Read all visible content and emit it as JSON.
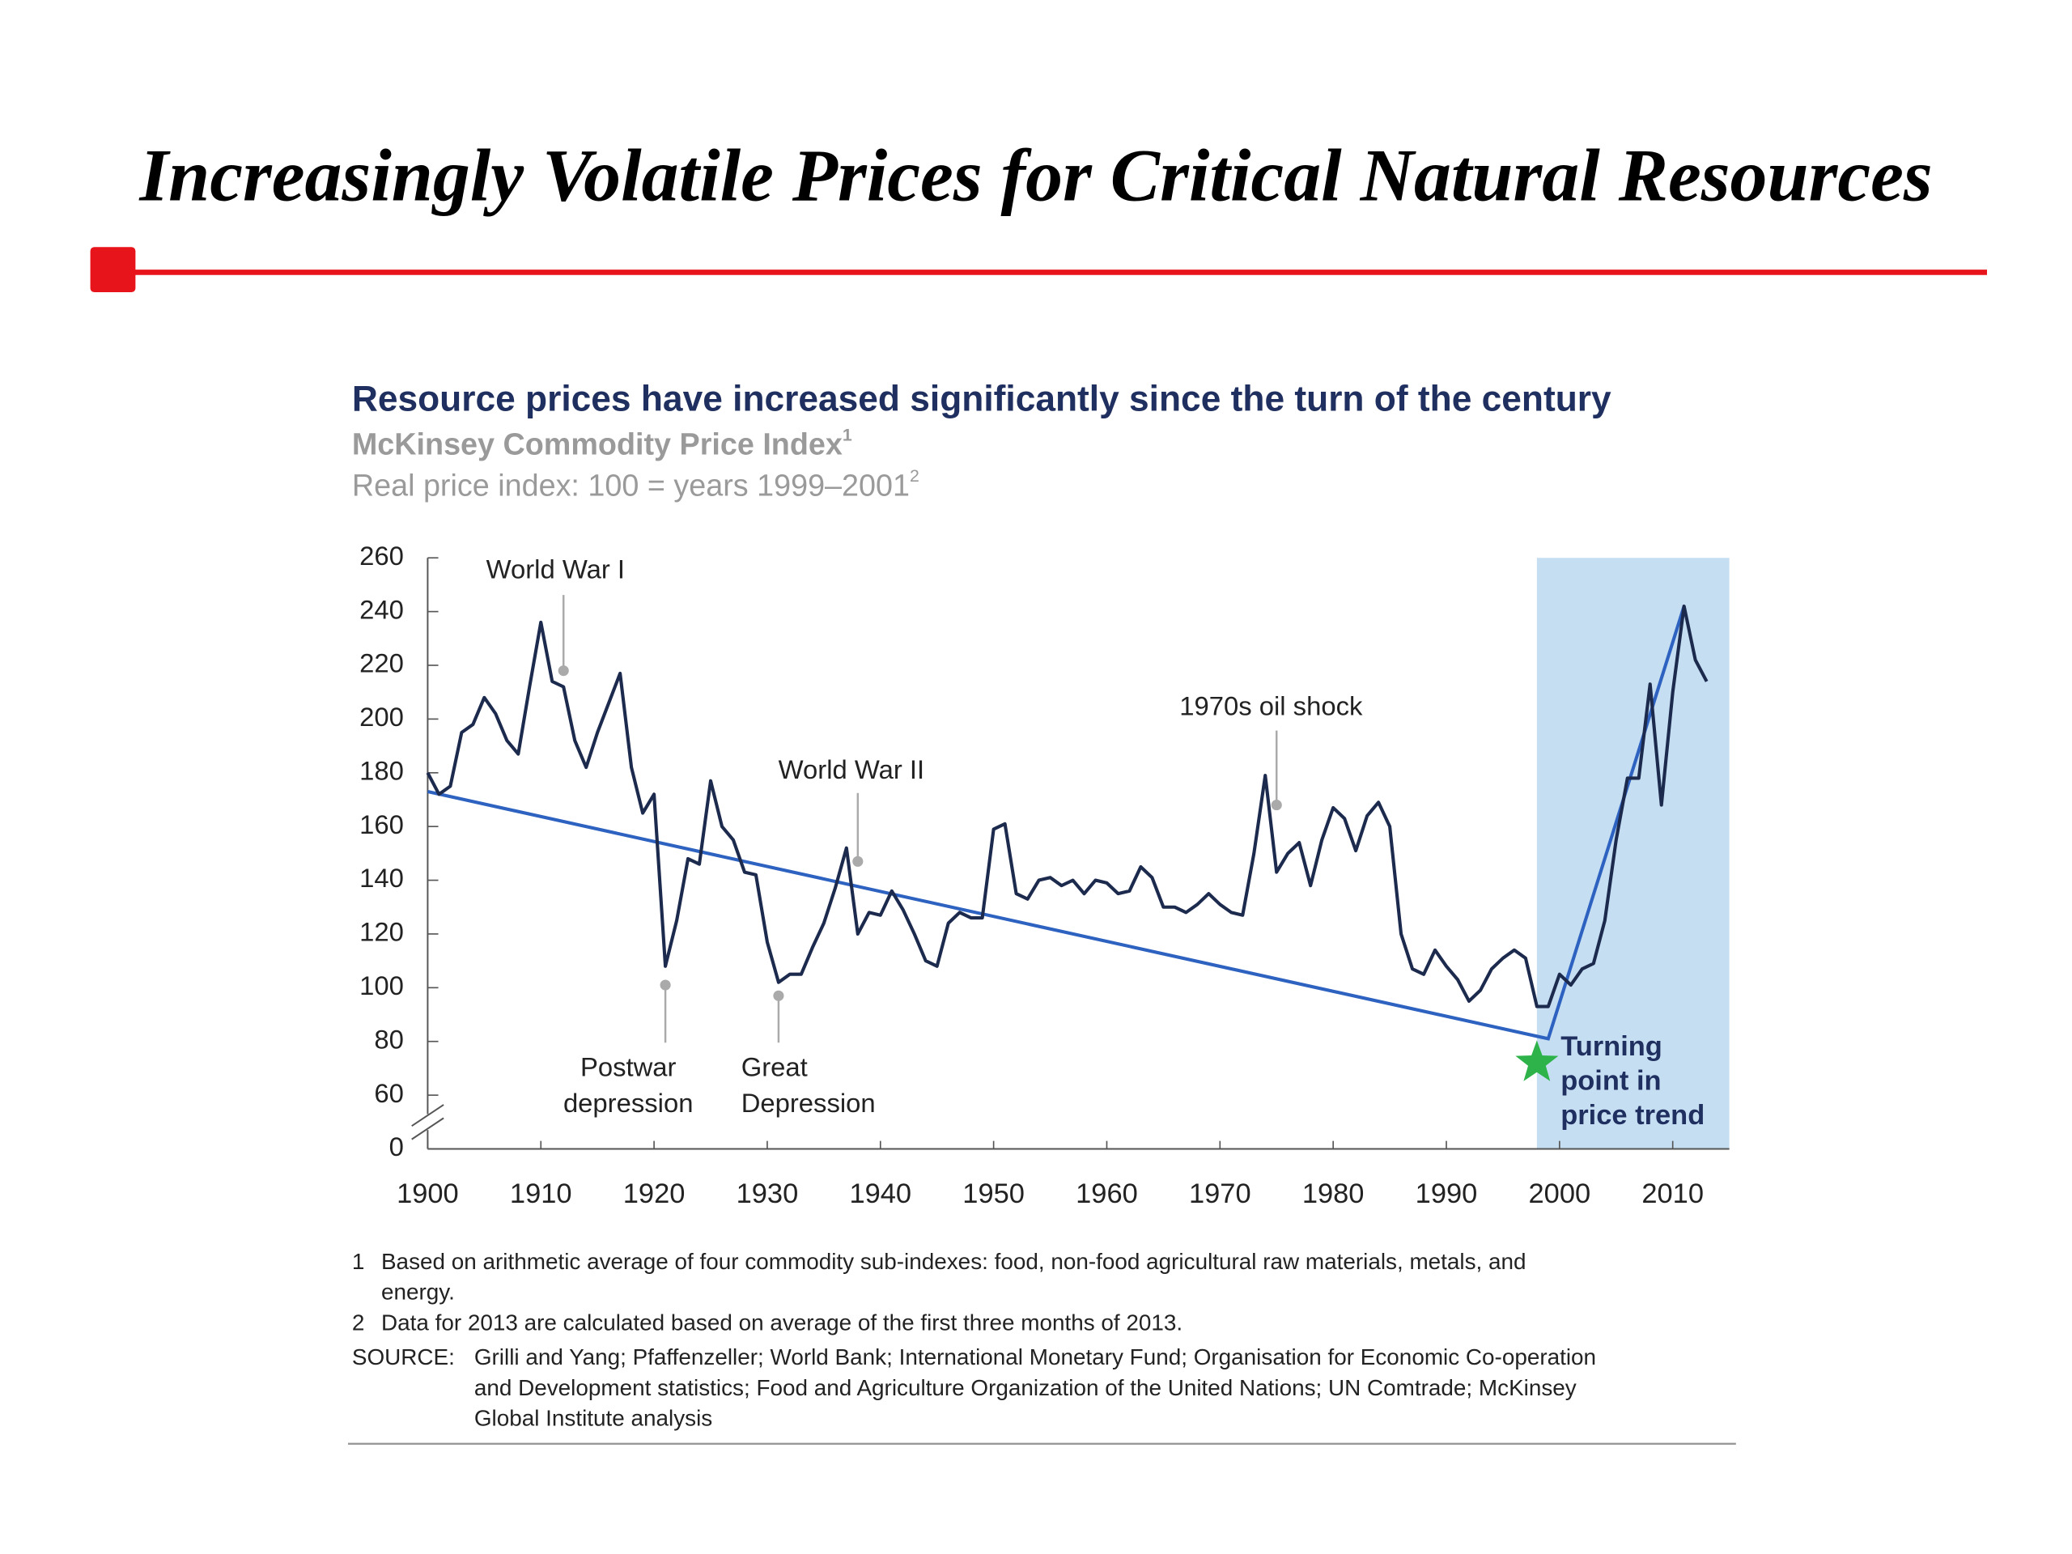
{
  "slide_title": "Increasingly Volatile Prices for Critical Natural Resources",
  "chart_data": {
    "type": "line",
    "title": "Resource prices have increased significantly since the turn of the century",
    "subtitle": "McKinsey Commodity Price Index",
    "subtitle_note": "1",
    "subtitle2": "Real price index: 100 = years 1999–2001",
    "subtitle2_note": "2",
    "x": [
      1900,
      1901,
      1902,
      1903,
      1904,
      1905,
      1906,
      1907,
      1908,
      1909,
      1910,
      1911,
      1912,
      1913,
      1914,
      1915,
      1916,
      1917,
      1918,
      1919,
      1920,
      1921,
      1922,
      1923,
      1924,
      1925,
      1926,
      1927,
      1928,
      1929,
      1930,
      1931,
      1932,
      1933,
      1934,
      1935,
      1936,
      1937,
      1938,
      1939,
      1940,
      1941,
      1942,
      1943,
      1944,
      1945,
      1946,
      1947,
      1948,
      1949,
      1950,
      1951,
      1952,
      1953,
      1954,
      1955,
      1956,
      1957,
      1958,
      1959,
      1960,
      1961,
      1962,
      1963,
      1964,
      1965,
      1966,
      1967,
      1968,
      1969,
      1970,
      1971,
      1972,
      1973,
      1974,
      1975,
      1976,
      1977,
      1978,
      1979,
      1980,
      1981,
      1982,
      1983,
      1984,
      1985,
      1986,
      1987,
      1988,
      1989,
      1990,
      1991,
      1992,
      1993,
      1994,
      1995,
      1996,
      1997,
      1998,
      1999,
      2000,
      2001,
      2002,
      2003,
      2004,
      2005,
      2006,
      2007,
      2008,
      2009,
      2010,
      2011,
      2012,
      2013
    ],
    "series": [
      {
        "color": "#1c2a4e",
        "values": [
          180,
          172,
          175,
          195,
          198,
          208,
          202,
          192,
          187,
          212,
          236,
          214,
          212,
          192,
          182,
          195,
          206,
          217,
          182,
          165,
          172,
          108,
          125,
          148,
          146,
          177,
          160,
          155,
          143,
          142,
          117,
          102,
          105,
          105,
          115,
          124,
          137,
          152,
          120,
          128,
          127,
          136,
          129,
          120,
          110,
          108,
          124,
          128,
          126,
          126,
          159,
          161,
          135,
          133,
          140,
          141,
          138,
          140,
          135,
          140,
          139,
          135,
          136,
          145,
          141,
          130,
          130,
          128,
          131,
          135,
          131,
          128,
          127,
          150,
          179,
          143,
          150,
          154,
          138,
          155,
          167,
          163,
          151,
          164,
          169,
          160,
          120,
          107,
          105,
          114,
          108,
          103,
          95,
          99,
          107,
          111,
          114,
          111,
          93,
          93,
          105,
          101,
          107,
          109,
          125,
          155,
          178,
          178,
          213,
          168,
          210,
          242,
          222,
          214
        ]
      }
    ],
    "trend_line": {
      "color": "#2e62c0",
      "x": [
        1900,
        1999,
        2011
      ],
      "values": [
        173,
        81,
        242
      ]
    },
    "highlight": {
      "xlim": [
        1998,
        2015
      ],
      "color": "#c5def2"
    },
    "marker": {
      "x": 1998,
      "y": 72,
      "color": "#2db34a"
    },
    "marker_label": [
      "Turning",
      "point in",
      "price trend"
    ],
    "annotations": [
      {
        "text": [
          "World War I"
        ],
        "x": 1912,
        "y": 218
      },
      {
        "text": [
          "Postwar",
          "depression"
        ],
        "x": 1921,
        "y": 101
      },
      {
        "text": [
          "Great",
          "Depression"
        ],
        "x": 1931,
        "y": 97
      },
      {
        "text": [
          "World War II"
        ],
        "x": 1938,
        "y": 147
      },
      {
        "text": [
          "1970s oil shock"
        ],
        "x": 1975,
        "y": 168
      }
    ],
    "xlim": [
      1900,
      2015
    ],
    "xticks": [
      1900,
      1910,
      1920,
      1930,
      1940,
      1950,
      1960,
      1970,
      1980,
      1990,
      2000,
      2010
    ],
    "ylim": [
      0,
      260
    ],
    "yticks": [
      0,
      60,
      80,
      100,
      120,
      140,
      160,
      180,
      200,
      220,
      240,
      260
    ],
    "axis_break": true,
    "notes": [
      {
        "num": "1",
        "lines": [
          "Based on arithmetic average of four commodity sub-indexes: food, non-food agricultural raw materials, metals, and",
          "energy."
        ]
      },
      {
        "num": "2",
        "lines": [
          "Data for 2013 are calculated based on average of the first three months of 2013."
        ]
      }
    ],
    "source": {
      "label": "SOURCE:",
      "lines": [
        "Grilli and Yang; Pfaffenzeller; World Bank; International Monetary Fund; Organisation for Economic Co-operation",
        "and Development statistics; Food and Agriculture Organization of the United Nations; UN Comtrade; McKinsey",
        "Global Institute analysis"
      ]
    }
  }
}
